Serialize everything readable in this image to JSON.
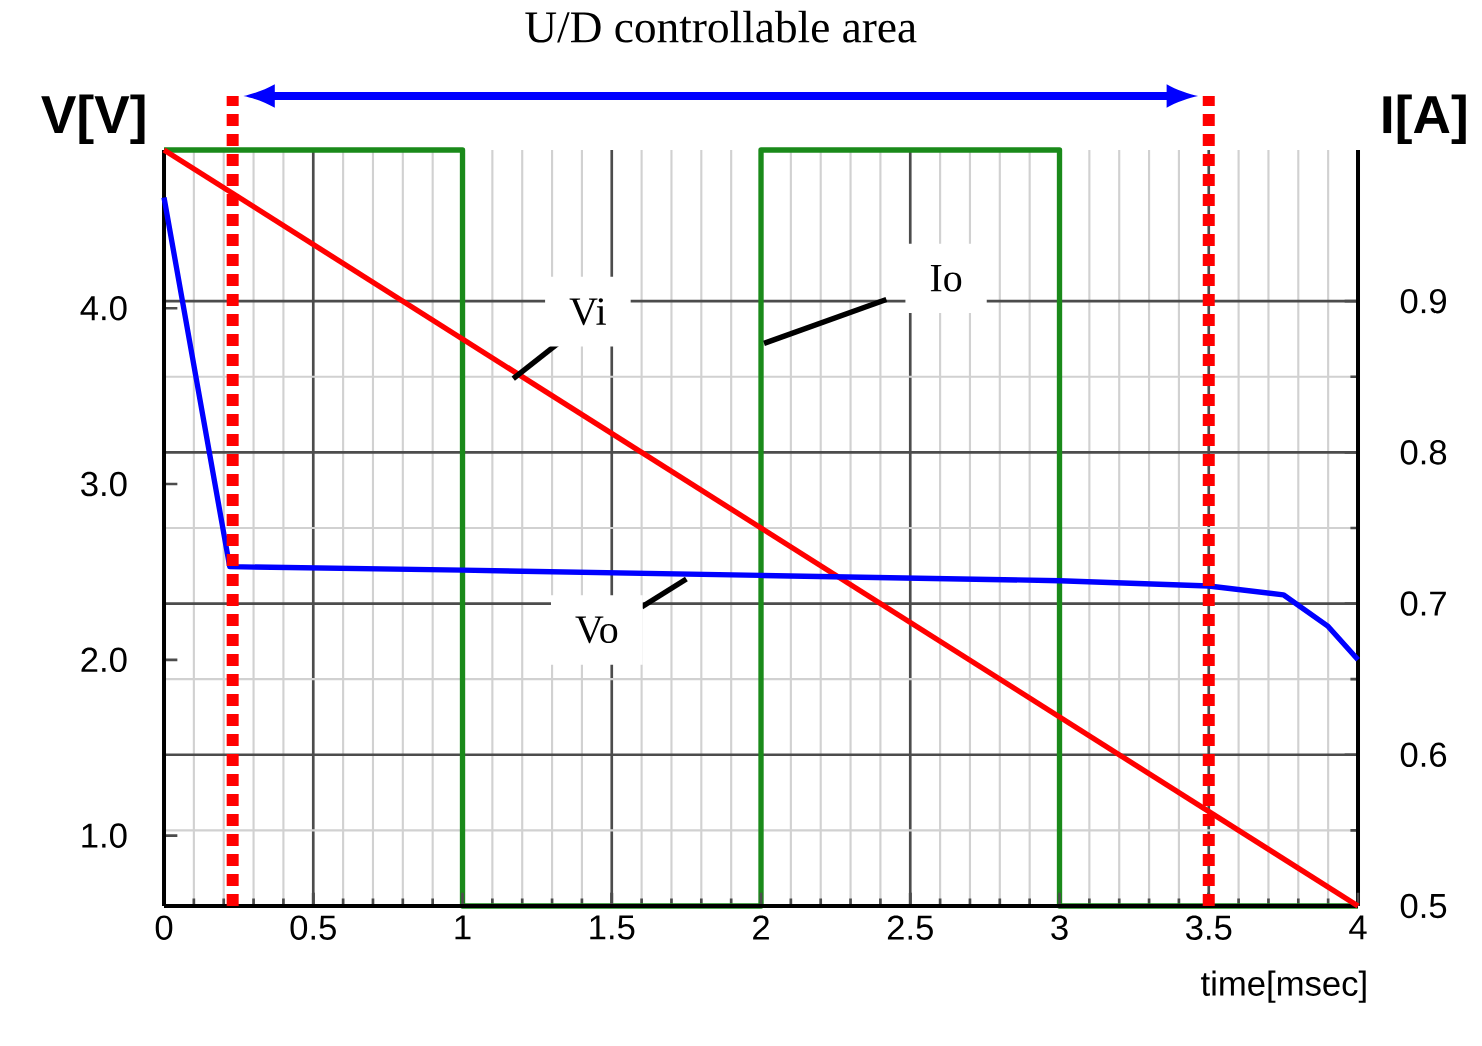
{
  "chart_data": {
    "type": "line",
    "xlabel": "time[msec]",
    "ylabel": "V[V]",
    "y2label": "I[A]",
    "annotations": [
      "U/D controllable area"
    ],
    "xlim": [
      0,
      4
    ],
    "xticks": [
      0,
      0.5,
      1,
      1.5,
      2,
      2.5,
      3,
      3.5,
      4
    ],
    "ylim": [
      0.6,
      4.9
    ],
    "yticks": [
      {
        "value": 1,
        "label": "1.0"
      },
      {
        "value": 2,
        "label": "2.0"
      },
      {
        "value": 3,
        "label": "3.0"
      },
      {
        "value": 4,
        "label": "4.0"
      }
    ],
    "y2lim": [
      0.5,
      1.0
    ],
    "y2ticks": [
      0.5,
      0.6,
      0.7,
      0.8,
      0.9
    ],
    "grid": true,
    "ref_lines": [
      {
        "axis": "x",
        "value": 0.23,
        "color": "#ff0000",
        "line_style": "dotted"
      },
      {
        "axis": "x",
        "value": 3.5,
        "color": "#ff0000",
        "line_style": "dotted"
      }
    ],
    "series": [
      {
        "name": "Io",
        "color": "#1a8a1a",
        "axis": "y2",
        "x": [
          0,
          1,
          1,
          2,
          2,
          3,
          3,
          4
        ],
        "values": [
          1.0,
          1.0,
          0.5,
          0.5,
          1.0,
          1.0,
          0.5,
          0.5
        ]
      },
      {
        "name": "Vi",
        "color": "#ff0000",
        "x": [
          0,
          4
        ],
        "values": [
          4.9,
          0.6
        ]
      },
      {
        "name": "Vo",
        "color": "#0000ff",
        "x": [
          0,
          0.22,
          1,
          2,
          3,
          3.5,
          3.75,
          3.9,
          4
        ],
        "values": [
          4.63,
          2.53,
          2.51,
          2.48,
          2.45,
          2.42,
          2.37,
          2.19,
          2.0
        ]
      }
    ]
  }
}
